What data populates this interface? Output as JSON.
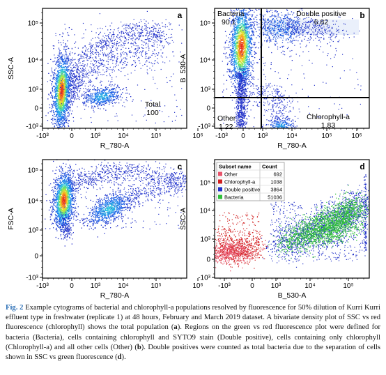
{
  "panels": [
    {
      "id": "a",
      "letter": "a",
      "xlabel": "R_780-A",
      "ylabel": "SSC-A",
      "x_ticks": [
        "-10³",
        "0",
        "10³",
        "10⁴",
        "10⁵",
        "10⁶"
      ],
      "y_ticks": [
        "10⁵",
        "10⁴",
        "10³",
        "0",
        "-10³"
      ],
      "gates": [
        {
          "name": "Total",
          "value": "100"
        }
      ]
    },
    {
      "id": "b",
      "letter": "b",
      "xlabel": "R_780-A",
      "ylabel": "B_530-A",
      "x_ticks": [
        "-10³",
        "0",
        "10³",
        "10⁴",
        "10⁵",
        "10⁶"
      ],
      "y_ticks": [
        "10⁵",
        "10⁴",
        "10³",
        "0",
        "-10³"
      ],
      "gates": [
        {
          "name": "Bacteria",
          "value": "90.1"
        },
        {
          "name": "Double positive",
          "value": "6.82"
        },
        {
          "name": "Other",
          "value": "1.22"
        },
        {
          "name": "Chlorophyll-a",
          "value": "1.83"
        }
      ]
    },
    {
      "id": "c",
      "letter": "c",
      "xlabel": "R_780-A",
      "ylabel": "FSC-A",
      "x_ticks": [
        "-10³",
        "0",
        "10³",
        "10⁴",
        "10⁵",
        "10⁶"
      ],
      "y_ticks": [
        "10⁵",
        "10⁴",
        "10³",
        "0",
        "-10³"
      ],
      "gates": []
    },
    {
      "id": "d",
      "letter": "d",
      "xlabel": "B_530-A",
      "ylabel": "SSC-A",
      "x_ticks": [
        "-10³",
        "0",
        "10³",
        "10⁴",
        "10⁵"
      ],
      "y_ticks": [
        "10⁵",
        "10⁴",
        "10³",
        "0",
        "-10³"
      ],
      "gates": [],
      "legend": {
        "header": [
          "Subset name",
          "Count"
        ],
        "rows": [
          {
            "name": "Other",
            "count": "692",
            "color": "#e8536b"
          },
          {
            "name": "Chlorophyll-a",
            "count": "1038",
            "color": "#d11f1f"
          },
          {
            "name": "Double positive",
            "count": "3864",
            "color": "#1f2fc8"
          },
          {
            "name": "Bacteria",
            "count": "51036",
            "color": "#2fbf3a"
          }
        ]
      }
    }
  ],
  "caption": {
    "label": "Fig. 2",
    "parts": [
      {
        "t": "Example cytograms of bacterial and chlorophyll-a populations resolved by fluorescence for 50% dilution of Kurri Kurri effluent type in freshwater (replicate 1) at 48 hours, February and March 2019 dataset. A bivariate density plot of SSC vs red fluorescence (chlorophyll) shows the total population ("
      },
      {
        "b": "a"
      },
      {
        "t": "). Regions on the green vs red fluorescence plot were defined for bacteria (Bacteria), cells containing chlorophyll and SYTO9 stain (Double positive), cells containing only chlorophyll (Chlorophyll-a) and all other cells (Other) ("
      },
      {
        "b": "b"
      },
      {
        "t": "). Double positives were counted as total bacteria due to the separation of cells shown in SSC vs green fluorescence ("
      },
      {
        "b": "d"
      },
      {
        "t": ")."
      }
    ]
  }
}
